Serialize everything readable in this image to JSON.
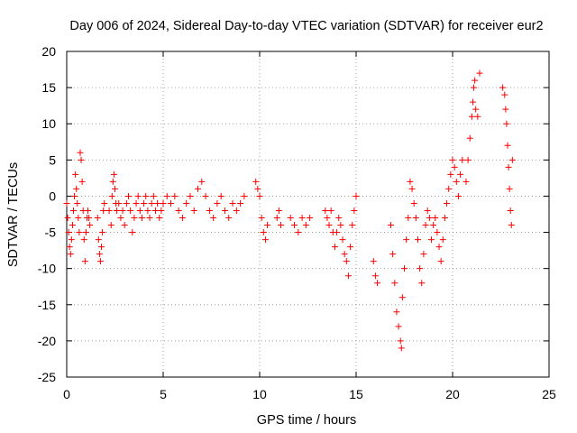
{
  "chart_data": {
    "type": "scatter",
    "title": "Day 006 of 2024, Sidereal Day-to-day VTEC variation (SDTVAR) for receiver eur2",
    "xlabel": "GPS time / hours",
    "ylabel": "SDTVAR / TECUs",
    "xlim": [
      0,
      25
    ],
    "ylim": [
      -25,
      20
    ],
    "xticks": [
      0,
      5,
      10,
      15,
      20,
      25
    ],
    "yticks": [
      -25,
      -20,
      -15,
      -10,
      -5,
      0,
      5,
      10,
      15,
      20
    ],
    "grid": true,
    "marker": "+",
    "color": "#ff0000",
    "series": [
      {
        "name": "SDTVAR",
        "points": [
          [
            0.0,
            -1.0
          ],
          [
            0.05,
            -3.0
          ],
          [
            0.1,
            -5.0
          ],
          [
            0.15,
            -7.0
          ],
          [
            0.2,
            -8.0
          ],
          [
            0.25,
            -6.0
          ],
          [
            0.3,
            -4.0
          ],
          [
            0.35,
            -2.0
          ],
          [
            0.4,
            0.0
          ],
          [
            0.45,
            3.0
          ],
          [
            0.5,
            1.0
          ],
          [
            0.55,
            -1.0
          ],
          [
            0.6,
            -3.0
          ],
          [
            0.65,
            -5.0
          ],
          [
            0.7,
            6.0
          ],
          [
            0.75,
            5.0
          ],
          [
            0.8,
            2.0
          ],
          [
            0.85,
            -2.0
          ],
          [
            0.9,
            -6.0
          ],
          [
            0.95,
            -9.0
          ],
          [
            1.0,
            -5.0
          ],
          [
            1.05,
            -3.0
          ],
          [
            1.1,
            -2.0
          ],
          [
            1.15,
            -3.0
          ],
          [
            1.2,
            -4.0
          ],
          [
            1.6,
            -3.0
          ],
          [
            1.65,
            -6.0
          ],
          [
            1.7,
            -8.0
          ],
          [
            1.75,
            -9.0
          ],
          [
            1.8,
            -7.0
          ],
          [
            1.85,
            -5.0
          ],
          [
            1.9,
            -2.0
          ],
          [
            1.95,
            -1.0
          ],
          [
            2.2,
            -2.0
          ],
          [
            2.3,
            -4.0
          ],
          [
            2.35,
            0.0
          ],
          [
            2.4,
            2.0
          ],
          [
            2.45,
            3.0
          ],
          [
            2.5,
            1.0
          ],
          [
            2.55,
            -1.0
          ],
          [
            2.6,
            -2.0
          ],
          [
            2.7,
            -1.0
          ],
          [
            2.8,
            -3.0
          ],
          [
            2.9,
            -2.0
          ],
          [
            3.0,
            -4.0
          ],
          [
            3.1,
            -1.0
          ],
          [
            3.2,
            0.0
          ],
          [
            3.3,
            -2.0
          ],
          [
            3.4,
            -5.0
          ],
          [
            3.5,
            -3.0
          ],
          [
            3.6,
            -1.0
          ],
          [
            3.7,
            0.0
          ],
          [
            3.8,
            -2.0
          ],
          [
            3.9,
            -3.0
          ],
          [
            4.0,
            -1.0
          ],
          [
            4.1,
            0.0
          ],
          [
            4.2,
            -2.0
          ],
          [
            4.3,
            -3.0
          ],
          [
            4.4,
            -1.0
          ],
          [
            4.5,
            0.0
          ],
          [
            4.6,
            -2.0
          ],
          [
            4.7,
            -1.0
          ],
          [
            4.8,
            -3.0
          ],
          [
            4.9,
            -2.0
          ],
          [
            5.0,
            -1.0
          ],
          [
            5.2,
            0.0
          ],
          [
            5.4,
            -1.0
          ],
          [
            5.6,
            0.0
          ],
          [
            5.8,
            -2.0
          ],
          [
            6.0,
            -3.0
          ],
          [
            6.2,
            -1.0
          ],
          [
            6.4,
            0.0
          ],
          [
            6.6,
            -2.0
          ],
          [
            6.8,
            1.0
          ],
          [
            7.0,
            2.0
          ],
          [
            7.2,
            0.0
          ],
          [
            7.4,
            -2.0
          ],
          [
            7.6,
            -3.0
          ],
          [
            7.8,
            -1.0
          ],
          [
            8.0,
            0.0
          ],
          [
            8.2,
            -2.0
          ],
          [
            8.4,
            -3.0
          ],
          [
            8.6,
            -1.0
          ],
          [
            8.8,
            -2.0
          ],
          [
            9.0,
            -1.0
          ],
          [
            9.2,
            0.0
          ],
          [
            9.8,
            2.0
          ],
          [
            9.9,
            1.0
          ],
          [
            10.0,
            0.0
          ],
          [
            10.1,
            -3.0
          ],
          [
            10.2,
            -5.0
          ],
          [
            10.3,
            -6.0
          ],
          [
            10.4,
            -4.0
          ],
          [
            10.9,
            -3.0
          ],
          [
            11.0,
            -2.0
          ],
          [
            11.1,
            -4.0
          ],
          [
            11.6,
            -3.0
          ],
          [
            11.8,
            -4.0
          ],
          [
            12.0,
            -5.0
          ],
          [
            12.2,
            -3.0
          ],
          [
            12.4,
            -4.0
          ],
          [
            12.6,
            -3.0
          ],
          [
            13.4,
            -2.0
          ],
          [
            13.5,
            -3.0
          ],
          [
            13.6,
            -4.0
          ],
          [
            13.7,
            -2.0
          ],
          [
            13.8,
            -5.0
          ],
          [
            13.9,
            -7.0
          ],
          [
            14.0,
            -5.0
          ],
          [
            14.1,
            -3.0
          ],
          [
            14.2,
            -4.0
          ],
          [
            14.3,
            -6.0
          ],
          [
            14.4,
            -8.0
          ],
          [
            14.5,
            -9.0
          ],
          [
            14.6,
            -11.0
          ],
          [
            14.7,
            -7.0
          ],
          [
            14.8,
            -4.0
          ],
          [
            14.9,
            -2.0
          ],
          [
            15.0,
            0.0
          ],
          [
            15.9,
            -9.0
          ],
          [
            16.0,
            -11.0
          ],
          [
            16.1,
            -12.0
          ],
          [
            16.8,
            -4.0
          ],
          [
            16.9,
            -8.0
          ],
          [
            17.0,
            -12.0
          ],
          [
            17.1,
            -16.0
          ],
          [
            17.2,
            -18.0
          ],
          [
            17.3,
            -20.0
          ],
          [
            17.35,
            -21.0
          ],
          [
            17.4,
            -14.0
          ],
          [
            17.5,
            -10.0
          ],
          [
            17.6,
            -6.0
          ],
          [
            17.7,
            -3.0
          ],
          [
            17.8,
            2.0
          ],
          [
            17.9,
            1.0
          ],
          [
            18.0,
            -1.0
          ],
          [
            18.1,
            -3.0
          ],
          [
            18.2,
            -6.0
          ],
          [
            18.3,
            -10.0
          ],
          [
            18.4,
            -12.0
          ],
          [
            18.5,
            -8.0
          ],
          [
            18.6,
            -4.0
          ],
          [
            18.7,
            -2.0
          ],
          [
            18.8,
            -3.0
          ],
          [
            18.9,
            -6.0
          ],
          [
            19.0,
            -4.0
          ],
          [
            19.1,
            -3.0
          ],
          [
            19.2,
            -5.0
          ],
          [
            19.3,
            -7.0
          ],
          [
            19.4,
            -9.0
          ],
          [
            19.5,
            -6.0
          ],
          [
            19.6,
            -3.0
          ],
          [
            19.7,
            -1.0
          ],
          [
            19.8,
            1.0
          ],
          [
            19.9,
            3.0
          ],
          [
            20.0,
            5.0
          ],
          [
            20.1,
            4.0
          ],
          [
            20.2,
            2.0
          ],
          [
            20.3,
            0.0
          ],
          [
            20.4,
            3.0
          ],
          [
            20.5,
            5.0
          ],
          [
            20.7,
            2.0
          ],
          [
            20.8,
            5.0
          ],
          [
            20.9,
            8.0
          ],
          [
            21.0,
            11.0
          ],
          [
            21.05,
            13.0
          ],
          [
            21.1,
            15.0
          ],
          [
            21.15,
            16.0
          ],
          [
            21.2,
            12.0
          ],
          [
            21.3,
            11.0
          ],
          [
            21.4,
            17.0
          ],
          [
            22.6,
            15.0
          ],
          [
            22.7,
            14.0
          ],
          [
            22.75,
            12.0
          ],
          [
            22.8,
            10.0
          ],
          [
            22.85,
            7.0
          ],
          [
            22.9,
            4.0
          ],
          [
            22.95,
            1.0
          ],
          [
            23.0,
            -2.0
          ],
          [
            23.05,
            -4.0
          ],
          [
            23.1,
            5.0
          ]
        ]
      }
    ]
  }
}
